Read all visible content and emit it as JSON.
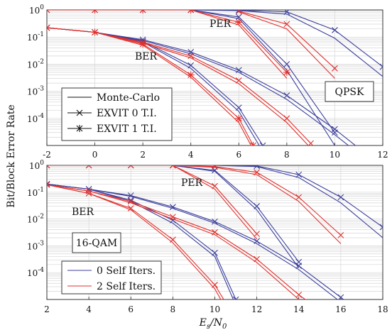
{
  "figure": {
    "ylabel": "Bit/Block Error Rate",
    "xlabel": "E_s/N_0",
    "colors": {
      "blue": "#3b3f9c",
      "red": "#e0302c",
      "black": "#111111",
      "grid": "#d6d6d6"
    }
  },
  "chart_data": [
    {
      "type": "line",
      "panel": "top",
      "yscale": "log",
      "xlim": [
        -2,
        12
      ],
      "ylim": [
        1e-05,
        1
      ],
      "xticks": [
        "-2",
        "0",
        "2",
        "4",
        "6",
        "8",
        "10",
        "12"
      ],
      "yticks": [
        "10^0",
        "10^-1",
        "10^-2",
        "10^-3",
        "10^-4"
      ],
      "annotations": [
        "PER",
        "BER"
      ],
      "box_label": "QPSK",
      "legend": {
        "position": "bottom-left",
        "entries": [
          {
            "label": "Monte-Carlo",
            "marker": "line"
          },
          {
            "label": "EXVIT 0 T.I.",
            "marker": "x"
          },
          {
            "label": "EXVIT 1 T.I.",
            "marker": "star"
          }
        ]
      },
      "series": [
        {
          "color": "blue",
          "marker": "x",
          "x": [
            -2,
            0,
            2,
            4,
            6,
            8,
            10,
            12
          ],
          "y": [
            1,
            1,
            1,
            1,
            0.98,
            0.85,
            0.18,
            0.008
          ]
        },
        {
          "color": "blue",
          "marker": "none",
          "x": [
            -2,
            0,
            2,
            4,
            6,
            8,
            10,
            12
          ],
          "y": [
            1,
            1,
            1,
            1,
            0.95,
            0.7,
            0.09,
            0.0035
          ]
        },
        {
          "color": "blue",
          "marker": "x",
          "x": [
            4,
            6,
            8,
            10
          ],
          "y": [
            1,
            0.55,
            0.01,
            3e-05
          ]
        },
        {
          "color": "blue",
          "marker": "none",
          "x": [
            4,
            6,
            8,
            10
          ],
          "y": [
            1,
            0.48,
            0.006,
            1e-05
          ]
        },
        {
          "color": "red",
          "marker": "star",
          "x": [
            -2,
            0,
            2,
            4,
            6,
            8
          ],
          "y": [
            1,
            1,
            1,
            1,
            0.35,
            0.005
          ]
        },
        {
          "color": "red",
          "marker": "none",
          "x": [
            -2,
            0,
            2,
            4,
            6,
            8
          ],
          "y": [
            1,
            1,
            1,
            1,
            0.28,
            0.003
          ]
        },
        {
          "color": "red",
          "marker": "x",
          "x": [
            6,
            8,
            10
          ],
          "y": [
            0.9,
            0.3,
            0.007
          ]
        },
        {
          "color": "red",
          "marker": "none",
          "x": [
            6,
            8,
            10
          ],
          "y": [
            0.85,
            0.2,
            0.003
          ]
        },
        {
          "color": "blue",
          "marker": "x",
          "x": [
            -2,
            0,
            2,
            4,
            6,
            8,
            10,
            11
          ],
          "y": [
            0.22,
            0.15,
            0.08,
            0.028,
            0.006,
            0.0007,
            4e-05,
            8e-06
          ]
        },
        {
          "color": "blue",
          "marker": "none",
          "x": [
            -2,
            0,
            2,
            4,
            6,
            8,
            10,
            11
          ],
          "y": [
            0.22,
            0.15,
            0.075,
            0.024,
            0.005,
            0.0005,
            2.5e-05,
            5e-06
          ]
        },
        {
          "color": "blue",
          "marker": "x",
          "x": [
            -2,
            0,
            2,
            4,
            6,
            7
          ],
          "y": [
            0.22,
            0.15,
            0.07,
            0.009,
            0.00025,
            1e-05
          ]
        },
        {
          "color": "blue",
          "marker": "none",
          "x": [
            -2,
            0,
            2,
            4,
            6,
            7
          ],
          "y": [
            0.22,
            0.15,
            0.065,
            0.007,
            0.00018,
            6e-06
          ]
        },
        {
          "color": "red",
          "marker": "x",
          "x": [
            -2,
            0,
            2,
            4,
            6,
            8,
            9
          ],
          "y": [
            0.22,
            0.15,
            0.065,
            0.02,
            0.0025,
            0.0001,
            1.2e-05
          ]
        },
        {
          "color": "red",
          "marker": "none",
          "x": [
            -2,
            0,
            2,
            4,
            6,
            8,
            9
          ],
          "y": [
            0.22,
            0.15,
            0.06,
            0.017,
            0.0019,
            7e-05,
            8e-06
          ]
        },
        {
          "color": "red",
          "marker": "star",
          "x": [
            -2,
            0,
            2,
            4,
            6,
            6.6
          ],
          "y": [
            0.22,
            0.15,
            0.055,
            0.004,
            0.0001,
            1e-05
          ]
        },
        {
          "color": "red",
          "marker": "none",
          "x": [
            -2,
            0,
            2,
            4,
            6,
            6.6
          ],
          "y": [
            0.22,
            0.15,
            0.05,
            0.0033,
            7e-05,
            7e-06
          ]
        }
      ]
    },
    {
      "type": "line",
      "panel": "bottom",
      "yscale": "log",
      "xlim": [
        2,
        18
      ],
      "ylim": [
        1e-05,
        1
      ],
      "xticks": [
        "2",
        "4",
        "6",
        "8",
        "10",
        "12",
        "14",
        "16",
        "18"
      ],
      "yticks": [
        "10^0",
        "10^-1",
        "10^-2",
        "10^-3",
        "10^-4"
      ],
      "annotations": [
        "PER",
        "BER"
      ],
      "box_label": "16-QAM",
      "legend": {
        "position": "bottom-left",
        "entries": [
          {
            "label": "0 Self Iters.",
            "color": "blue"
          },
          {
            "label": "2 Self Iters.",
            "color": "red"
          }
        ]
      },
      "series": [
        {
          "color": "blue",
          "marker": "x",
          "x": [
            2,
            4,
            6,
            8,
            10,
            12,
            14,
            16,
            18
          ],
          "y": [
            1,
            1,
            1,
            1,
            1,
            0.95,
            0.45,
            0.065,
            0.005
          ]
        },
        {
          "color": "blue",
          "marker": "none",
          "x": [
            2,
            4,
            6,
            8,
            10,
            12,
            14,
            16,
            18
          ],
          "y": [
            1,
            1,
            1,
            1,
            1,
            0.9,
            0.35,
            0.04,
            0.002
          ]
        },
        {
          "color": "blue",
          "marker": "x",
          "x": [
            8,
            10,
            12,
            14
          ],
          "y": [
            1,
            0.65,
            0.03,
            0.00025
          ]
        },
        {
          "color": "blue",
          "marker": "none",
          "x": [
            8,
            10,
            12,
            14
          ],
          "y": [
            1,
            0.6,
            0.022,
            0.00015
          ]
        },
        {
          "color": "red",
          "marker": "x",
          "x": [
            2,
            4,
            6,
            8,
            10,
            12,
            14,
            16
          ],
          "y": [
            1,
            1,
            1,
            1,
            0.9,
            0.55,
            0.065,
            0.0025
          ]
        },
        {
          "color": "red",
          "marker": "none",
          "x": [
            2,
            4,
            6,
            8,
            10,
            12,
            14,
            16
          ],
          "y": [
            1,
            1,
            1,
            1,
            0.85,
            0.45,
            0.045,
            0.0012
          ]
        },
        {
          "color": "red",
          "marker": "x",
          "x": [
            8,
            10,
            12
          ],
          "y": [
            1,
            0.17,
            0.0028
          ]
        },
        {
          "color": "red",
          "marker": "none",
          "x": [
            8,
            10,
            12
          ],
          "y": [
            1,
            0.13,
            0.0018
          ]
        },
        {
          "color": "blue",
          "marker": "x",
          "x": [
            2,
            4,
            6,
            8,
            10,
            12,
            14,
            16,
            17
          ],
          "y": [
            0.2,
            0.13,
            0.075,
            0.028,
            0.008,
            0.0015,
            0.00018,
            1.2e-05,
            3e-06
          ]
        },
        {
          "color": "blue",
          "marker": "none",
          "x": [
            2,
            4,
            6,
            8,
            10,
            12,
            14,
            16,
            17
          ],
          "y": [
            0.2,
            0.13,
            0.07,
            0.025,
            0.007,
            0.0012,
            0.00013,
            8e-06,
            2e-06
          ]
        },
        {
          "color": "blue",
          "marker": "x",
          "x": [
            2,
            4,
            6,
            8,
            10,
            11
          ],
          "y": [
            0.2,
            0.13,
            0.05,
            0.009,
            0.00055,
            1e-05
          ]
        },
        {
          "color": "blue",
          "marker": "none",
          "x": [
            2,
            4,
            6,
            8,
            10,
            11
          ],
          "y": [
            0.2,
            0.13,
            0.045,
            0.007,
            0.0004,
            6e-06
          ]
        },
        {
          "color": "red",
          "marker": "x",
          "x": [
            2,
            4,
            6,
            8,
            10,
            12,
            14,
            15
          ],
          "y": [
            0.19,
            0.11,
            0.045,
            0.012,
            0.0032,
            0.00032,
            1.5e-05,
            4e-06
          ]
        },
        {
          "color": "red",
          "marker": "none",
          "x": [
            2,
            4,
            6,
            8,
            10,
            12,
            14,
            15
          ],
          "y": [
            0.19,
            0.11,
            0.04,
            0.01,
            0.0026,
            0.00024,
            1e-05,
            3e-06
          ]
        },
        {
          "color": "red",
          "marker": "x",
          "x": [
            2,
            4,
            6,
            8,
            10,
            10.5
          ],
          "y": [
            0.19,
            0.09,
            0.025,
            0.0017,
            3.5e-05,
            8e-06
          ]
        },
        {
          "color": "red",
          "marker": "none",
          "x": [
            2,
            4,
            6,
            8,
            10,
            10.5
          ],
          "y": [
            0.19,
            0.09,
            0.022,
            0.0013,
            2.5e-05,
            5e-06
          ]
        }
      ]
    }
  ]
}
